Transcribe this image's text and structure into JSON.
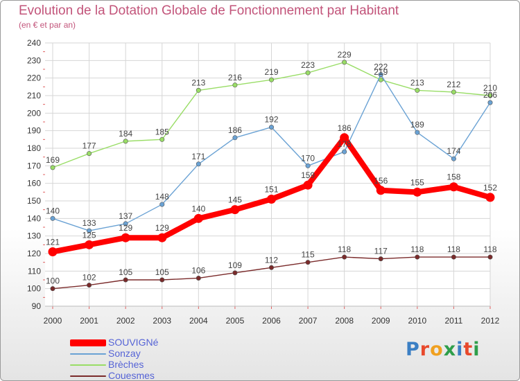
{
  "header": {
    "title": "Evolution de la Dotation Globale de Fonctionnement par Habitant",
    "subtitle": "(en € et par an)"
  },
  "logo": {
    "text": "Proxiti",
    "letter_colors": [
      "#3b7fc4",
      "#e8492c",
      "#f0a020",
      "#2e9e4a",
      "#3b7fc4",
      "#e8492c",
      "#2e9e4a"
    ]
  },
  "colors": {
    "background": "#ffffff",
    "grid": "#d6d6d6",
    "title": "#c2547a",
    "axis_text": "#333333",
    "legend_text": "#5563d6"
  },
  "chart_data": {
    "type": "line",
    "title": "Evolution de la Dotation Globale de Fonctionnement par Habitant",
    "subtitle": "(en € et par an)",
    "x": [
      "2000",
      "2001",
      "2002",
      "2003",
      "2004",
      "2005",
      "2006",
      "2007",
      "2008",
      "2009",
      "2010",
      "2011",
      "2012"
    ],
    "ylim": [
      90,
      240
    ],
    "yticks": [
      90,
      100,
      110,
      120,
      130,
      140,
      150,
      160,
      170,
      180,
      190,
      200,
      210,
      220,
      230,
      240
    ],
    "grid": true,
    "legend_position": "bottom-left",
    "series": [
      {
        "name": "SOUVIGNé",
        "color": "#ff0000",
        "values": [
          121,
          125,
          129,
          129,
          140,
          145,
          151,
          159,
          186,
          156,
          155,
          158,
          152
        ],
        "labels": [
          "121",
          "125",
          "129",
          "129",
          "140",
          "145",
          "151",
          "159",
          "186",
          "156",
          "155",
          "158",
          "152"
        ]
      },
      {
        "name": "Sonzay",
        "color": "#6aa2d4",
        "values": [
          140,
          133,
          137,
          148,
          171,
          186,
          192,
          170,
          178,
          222,
          189,
          174,
          206
        ],
        "labels": [
          "140",
          "133",
          "137",
          "148",
          "171",
          "186",
          "192",
          "170",
          "178",
          "222",
          "189",
          "174",
          "206"
        ]
      },
      {
        "name": "Brèches",
        "color": "#99dd66",
        "values": [
          169,
          177,
          184,
          185,
          213,
          216,
          219,
          223,
          229,
          219,
          213,
          212,
          210
        ],
        "labels": [
          "169",
          "177",
          "184",
          "185",
          "213",
          "216",
          "219",
          "223",
          "229",
          "219",
          "213",
          "212",
          "210"
        ]
      },
      {
        "name": "Couesmes",
        "color": "#7a2a2a",
        "values": [
          100,
          102,
          105,
          105,
          106,
          109,
          112,
          115,
          118,
          117,
          118,
          118,
          118
        ],
        "labels": [
          "100",
          "102",
          "105",
          "105",
          "106",
          "109",
          "112",
          "115",
          "118",
          "117",
          "118",
          "118",
          "118"
        ]
      }
    ]
  }
}
